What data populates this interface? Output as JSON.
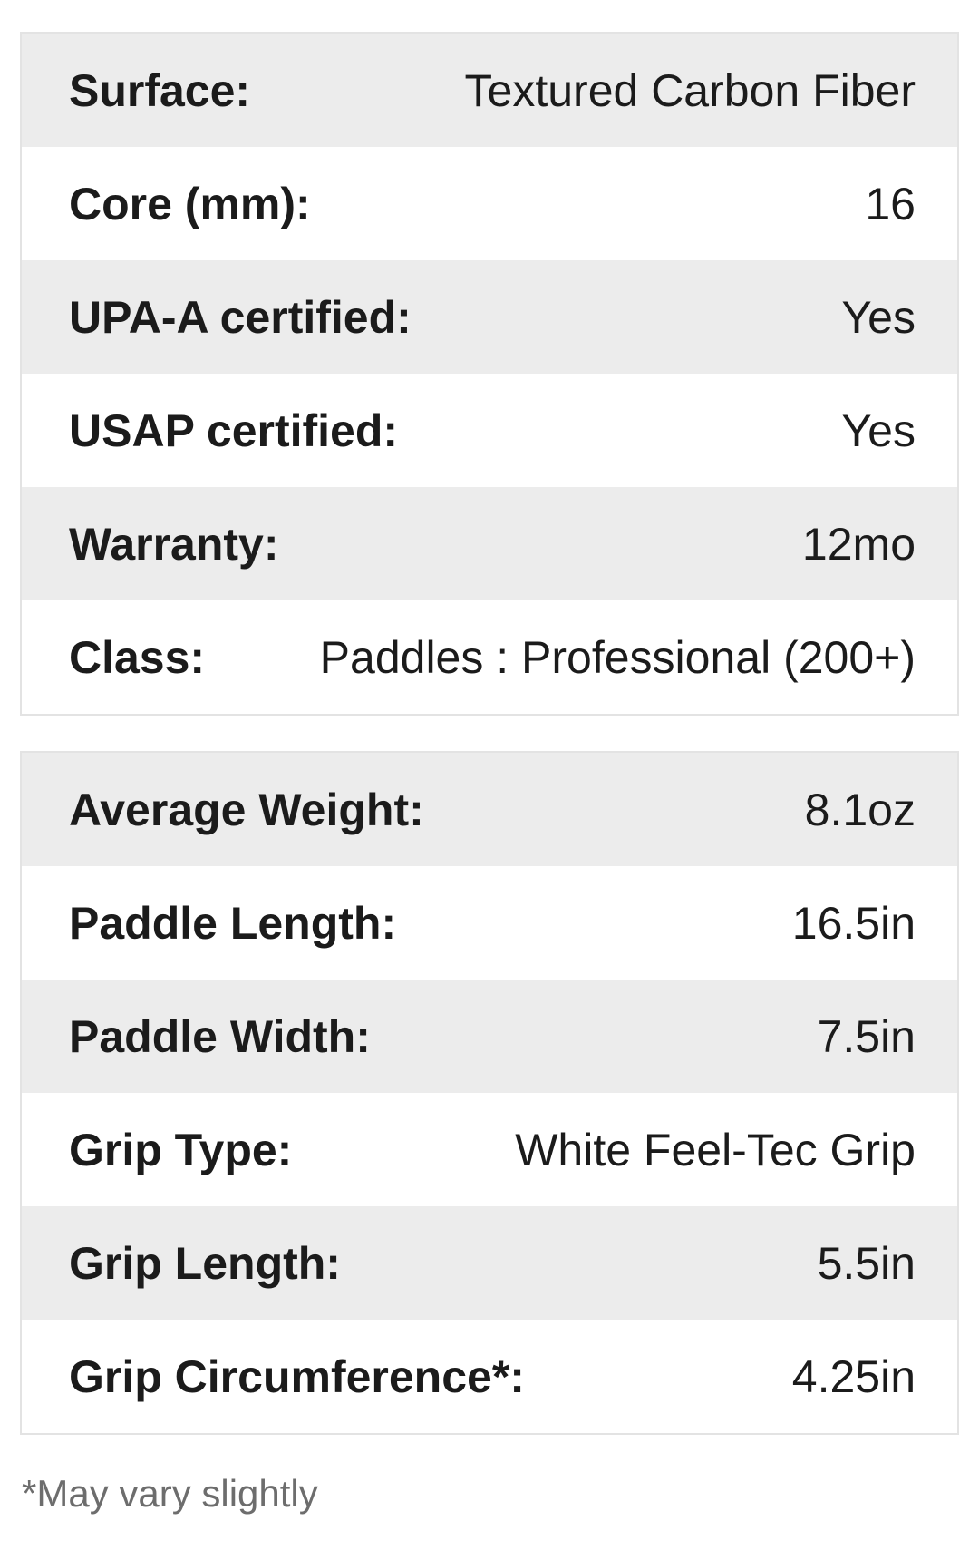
{
  "colors": {
    "stripe": "#ececec",
    "table_border": "#e3e3e3",
    "text": "#1b1b1b",
    "footnote_text": "#6d6d6d",
    "background": "#ffffff"
  },
  "tables": [
    {
      "name": "product-specs-general",
      "rows": [
        {
          "label": "Surface:",
          "value": "Textured Carbon Fiber"
        },
        {
          "label": "Core (mm):",
          "value": "16"
        },
        {
          "label": "UPA-A certified:",
          "value": "Yes"
        },
        {
          "label": "USAP certified:",
          "value": "Yes"
        },
        {
          "label": "Warranty:",
          "value": "12mo"
        },
        {
          "label": "Class:",
          "value": "Paddles : Professional (200+)"
        }
      ]
    },
    {
      "name": "product-specs-dimensions",
      "rows": [
        {
          "label": "Average Weight:",
          "value": "8.1oz"
        },
        {
          "label": "Paddle Length:",
          "value": "16.5in"
        },
        {
          "label": "Paddle Width:",
          "value": "7.5in"
        },
        {
          "label": "Grip Type:",
          "value": "White Feel-Tec Grip"
        },
        {
          "label": "Grip Length:",
          "value": "5.5in"
        },
        {
          "label": "Grip Circumference*:",
          "value": "4.25in"
        }
      ]
    }
  ],
  "footnote": "*May vary slightly"
}
